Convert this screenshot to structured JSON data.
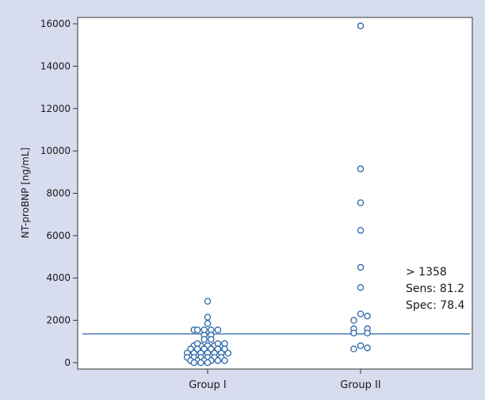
{
  "chart_data": {
    "type": "scatter",
    "ylabel": "NT-proBNP [ng/mL]",
    "xlabel": "",
    "ylim": [
      -300,
      16300
    ],
    "yticks": [
      0,
      2000,
      4000,
      6000,
      8000,
      10000,
      12000,
      14000,
      16000
    ],
    "categories": [
      "Group I",
      "Group II"
    ],
    "cutoff": 1358,
    "annotations": [
      "> 1358",
      "Sens: 81.2",
      "Spec: 78.4"
    ],
    "marker_color": "#2a66a8",
    "line_color": "#2a66a8",
    "series": [
      {
        "category": "Group I",
        "points": [
          {
            "offset": 0,
            "y": 2900
          },
          {
            "offset": 0,
            "y": 2150
          },
          {
            "offset": 0,
            "y": 1850
          },
          {
            "offset": -4,
            "y": 1550
          },
          {
            "offset": -3,
            "y": 1550
          },
          {
            "offset": -1,
            "y": 1550
          },
          {
            "offset": 1,
            "y": 1550
          },
          {
            "offset": 3,
            "y": 1550
          },
          {
            "offset": -1,
            "y": 1300
          },
          {
            "offset": 1,
            "y": 1300
          },
          {
            "offset": -1,
            "y": 1100
          },
          {
            "offset": 1,
            "y": 1100
          },
          {
            "offset": -4,
            "y": 800
          },
          {
            "offset": -2,
            "y": 800
          },
          {
            "offset": 0,
            "y": 800
          },
          {
            "offset": 2,
            "y": 800
          },
          {
            "offset": 4,
            "y": 800
          },
          {
            "offset": -3,
            "y": 900
          },
          {
            "offset": 3,
            "y": 900
          },
          {
            "offset": 5,
            "y": 900
          },
          {
            "offset": -5,
            "y": 650
          },
          {
            "offset": -3,
            "y": 650
          },
          {
            "offset": -1,
            "y": 650
          },
          {
            "offset": 1,
            "y": 650
          },
          {
            "offset": 3,
            "y": 650
          },
          {
            "offset": 5,
            "y": 650
          },
          {
            "offset": -6,
            "y": 450
          },
          {
            "offset": -4,
            "y": 450
          },
          {
            "offset": -2,
            "y": 450
          },
          {
            "offset": 0,
            "y": 450
          },
          {
            "offset": 2,
            "y": 450
          },
          {
            "offset": 4,
            "y": 450
          },
          {
            "offset": 6,
            "y": 450
          },
          {
            "offset": -6,
            "y": 250
          },
          {
            "offset": -4,
            "y": 250
          },
          {
            "offset": -2,
            "y": 250
          },
          {
            "offset": 0,
            "y": 250
          },
          {
            "offset": 2,
            "y": 250
          },
          {
            "offset": 4,
            "y": 250
          },
          {
            "offset": -5,
            "y": 100
          },
          {
            "offset": -3,
            "y": 100
          },
          {
            "offset": -1,
            "y": 100
          },
          {
            "offset": 1,
            "y": 100
          },
          {
            "offset": 3,
            "y": 100
          },
          {
            "offset": 5,
            "y": 100
          },
          {
            "offset": -4,
            "y": 0
          },
          {
            "offset": -2,
            "y": 0
          },
          {
            "offset": 0,
            "y": 0
          }
        ]
      },
      {
        "category": "Group II",
        "points": [
          {
            "offset": 0,
            "y": 15900
          },
          {
            "offset": 0,
            "y": 9150
          },
          {
            "offset": 0,
            "y": 7550
          },
          {
            "offset": 0,
            "y": 6250
          },
          {
            "offset": 0,
            "y": 4500
          },
          {
            "offset": 0,
            "y": 3550
          },
          {
            "offset": 0,
            "y": 2300
          },
          {
            "offset": 2,
            "y": 2200
          },
          {
            "offset": -2,
            "y": 2000
          },
          {
            "offset": -2,
            "y": 1600
          },
          {
            "offset": 2,
            "y": 1600
          },
          {
            "offset": -2,
            "y": 1400
          },
          {
            "offset": 2,
            "y": 1400
          },
          {
            "offset": 0,
            "y": 800
          },
          {
            "offset": -2,
            "y": 650
          },
          {
            "offset": 2,
            "y": 700
          }
        ]
      }
    ]
  }
}
